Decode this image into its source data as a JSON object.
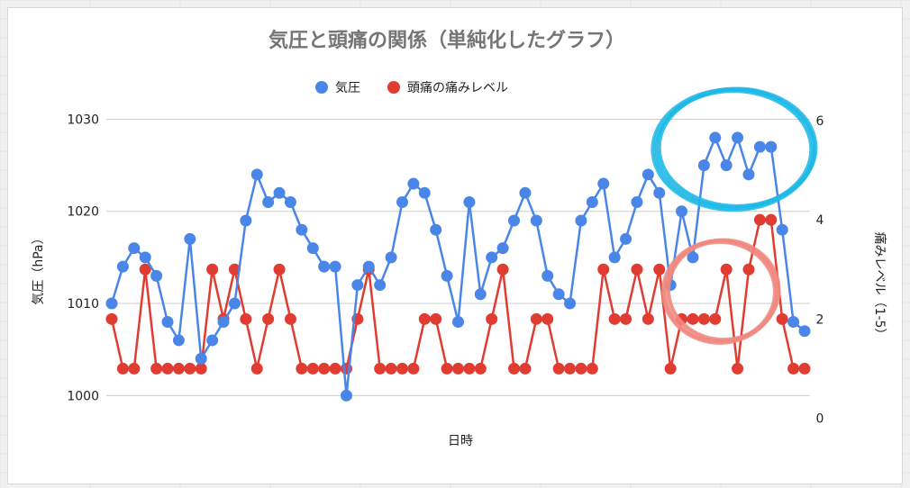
{
  "chart_data": {
    "type": "line",
    "title": "気圧と頭痛の関係（単純化したグラフ）",
    "xlabel": "日時",
    "ylabel_left": "気圧（hPa）",
    "ylabel_right": "痛みレベル（1-5）",
    "left_ticks": [
      "1000",
      "1010",
      "1020",
      "1030"
    ],
    "right_ticks": [
      "0",
      "2",
      "4",
      "6"
    ],
    "ylim_left": [
      997,
      1032
    ],
    "ylim_right": [
      -0.1,
      6.4
    ],
    "grid": true,
    "legend_position": "top-center",
    "series": [
      {
        "name": "気圧",
        "color": "#4a86e8",
        "axis": "left",
        "values": [
          1010,
          1014,
          1016,
          1015,
          1013,
          1008,
          1006,
          1017,
          1004,
          1006,
          1008,
          1010,
          1019,
          1024,
          1021,
          1022,
          1021,
          1018,
          1016,
          1014,
          1014,
          1000,
          1012,
          1014,
          1012,
          1015,
          1021,
          1023,
          1022,
          1018,
          1013,
          1008,
          1021,
          1011,
          1015,
          1016,
          1019,
          1022,
          1019,
          1013,
          1011,
          1010,
          1019,
          1021,
          1023,
          1015,
          1017,
          1021,
          1024,
          1022,
          1012,
          1020,
          1015,
          1025,
          1028,
          1025,
          1028,
          1024,
          1027,
          1027,
          1018,
          1008,
          1007
        ]
      },
      {
        "name": "頭痛の痛みレベル",
        "color": "#e03c31",
        "axis": "right",
        "values": [
          2,
          1,
          1,
          3,
          1,
          1,
          1,
          1,
          1,
          3,
          2,
          3,
          2,
          1,
          2,
          3,
          2,
          1,
          1,
          1,
          1,
          1,
          2,
          3,
          1,
          1,
          1,
          1,
          2,
          2,
          1,
          1,
          1,
          1,
          2,
          3,
          1,
          1,
          2,
          2,
          1,
          1,
          1,
          1,
          3,
          2,
          2,
          3,
          2,
          3,
          1,
          2,
          2,
          2,
          2,
          3,
          1,
          3,
          4,
          4,
          2,
          1,
          1
        ]
      }
    ]
  },
  "annotations": {
    "blue_circle_color": "#1fb8e6",
    "pink_circle_color": "#f08a80"
  }
}
